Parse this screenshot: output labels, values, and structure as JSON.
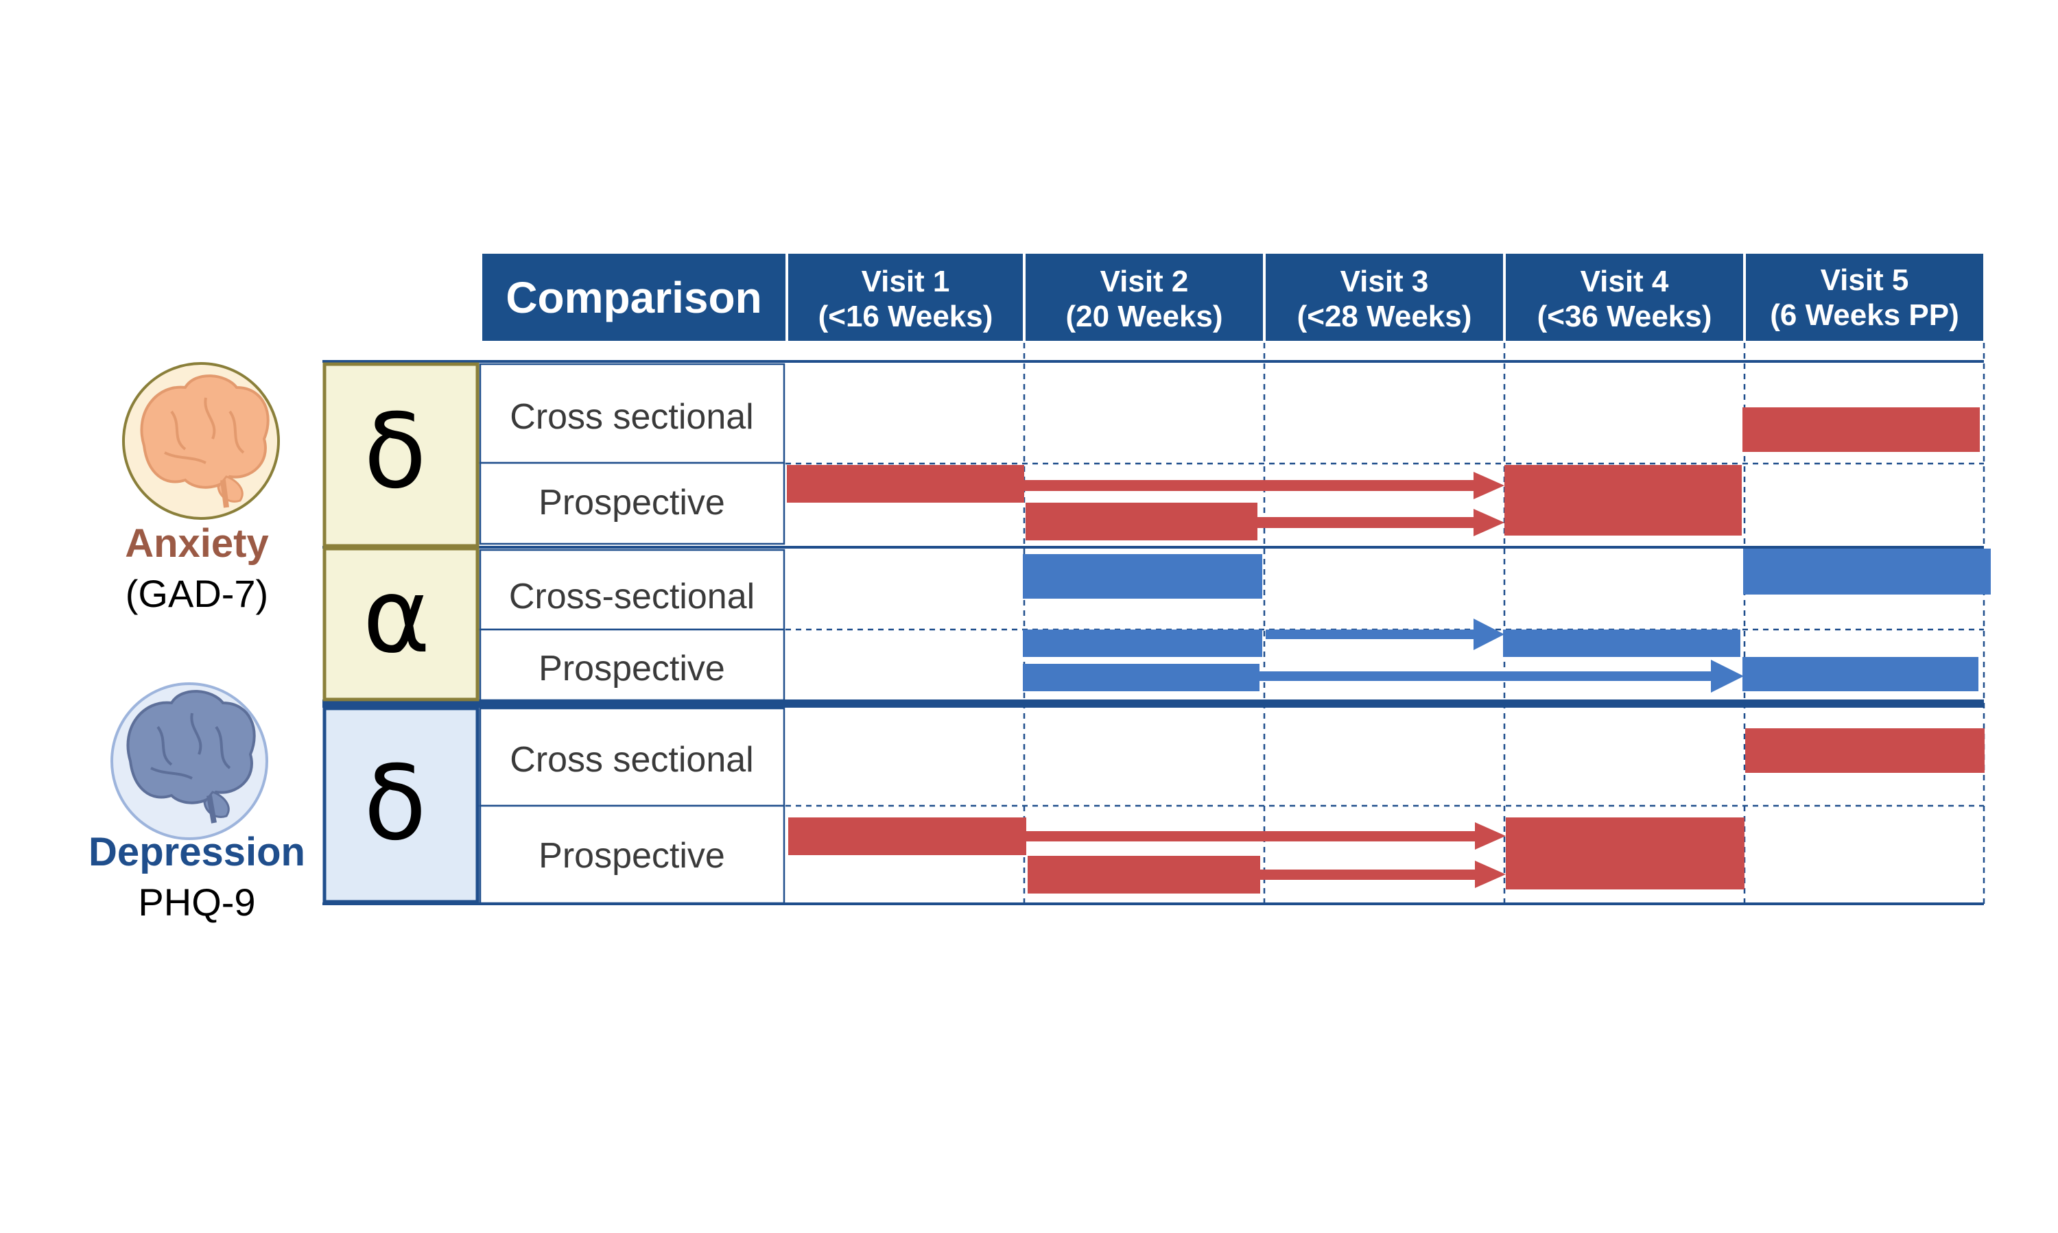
{
  "header": {
    "comparison_label": "Comparison",
    "visits": [
      {
        "line1": "Visit 1",
        "line2": "(<16 Weeks)"
      },
      {
        "line1": "Visit 2",
        "line2": "(20 Weeks)"
      },
      {
        "line1": "Visit 3",
        "line2": "(<28 Weeks)"
      },
      {
        "line1": "Visit 4",
        "line2": "(<36 Weeks)"
      },
      {
        "line1": "Visit 5",
        "line2": "(6 Weeks PP)"
      }
    ]
  },
  "categories": [
    {
      "title": "Anxiety",
      "subtitle": "(GAD-7)",
      "title_color": "#9b5a45",
      "icon": "orange-brain-icon"
    },
    {
      "title": "Depression",
      "subtitle": "PHQ-9",
      "title_color": "#1f4e8c",
      "icon": "blue-brain-icon"
    }
  ],
  "blocks": [
    {
      "symbol": "δ",
      "fill": "#f5f3d8",
      "border": "#8a7f3a",
      "rows": [
        "Cross sectional",
        "Prospective"
      ]
    },
    {
      "symbol": "α",
      "fill": "#f5f3d8",
      "border": "#8a7f3a",
      "rows": [
        "Cross-sectional",
        "Prospective"
      ]
    },
    {
      "symbol": "δ",
      "fill": "#dfeaf7",
      "border": "#1f4e8c",
      "rows": [
        "Cross sectional",
        "Prospective"
      ]
    }
  ],
  "colors": {
    "header_bg": "#1b4f8a",
    "delta_bar": "#c94c4c",
    "alpha_bar": "#4479c4",
    "grid_line": "#1f4e8c"
  }
}
